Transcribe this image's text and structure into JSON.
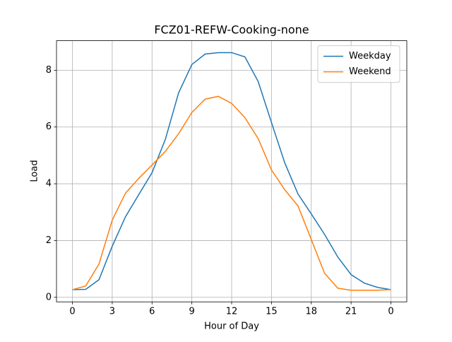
{
  "chart_data": {
    "type": "line",
    "title": "FCZ01-REFW-Cooking-none",
    "x_label": "Hour of Day",
    "y_label": "Load",
    "x": [
      0,
      1,
      2,
      3,
      4,
      5,
      6,
      7,
      8,
      9,
      10,
      11,
      12,
      13,
      14,
      15,
      16,
      17,
      18,
      19,
      20,
      21,
      22,
      23,
      24
    ],
    "series": [
      {
        "name": "Weekday",
        "color": "#1f77b4",
        "values": [
          0.27,
          0.28,
          0.62,
          1.8,
          2.84,
          3.62,
          4.39,
          5.56,
          7.2,
          8.2,
          8.57,
          8.62,
          8.62,
          8.47,
          7.6,
          6.16,
          4.74,
          3.64,
          2.94,
          2.22,
          1.42,
          0.8,
          0.5,
          0.35,
          0.27
        ]
      },
      {
        "name": "Weekend",
        "color": "#ff7f0e",
        "values": [
          0.27,
          0.4,
          1.17,
          2.72,
          3.67,
          4.19,
          4.66,
          5.14,
          5.76,
          6.51,
          6.98,
          7.08,
          6.83,
          6.33,
          5.59,
          4.49,
          3.79,
          3.22,
          2.04,
          0.85,
          0.32,
          0.25,
          0.25,
          0.25,
          0.27
        ]
      }
    ],
    "xlim": [
      -1.2,
      25.2
    ],
    "ylim": [
      -0.16,
      9.04
    ],
    "xticks": [
      0,
      3,
      6,
      9,
      12,
      15,
      18,
      21,
      {
        "value": 24,
        "label": "0"
      }
    ],
    "yticks": [
      0,
      2,
      4,
      6,
      8
    ],
    "grid": true,
    "legend": "upper-right"
  }
}
